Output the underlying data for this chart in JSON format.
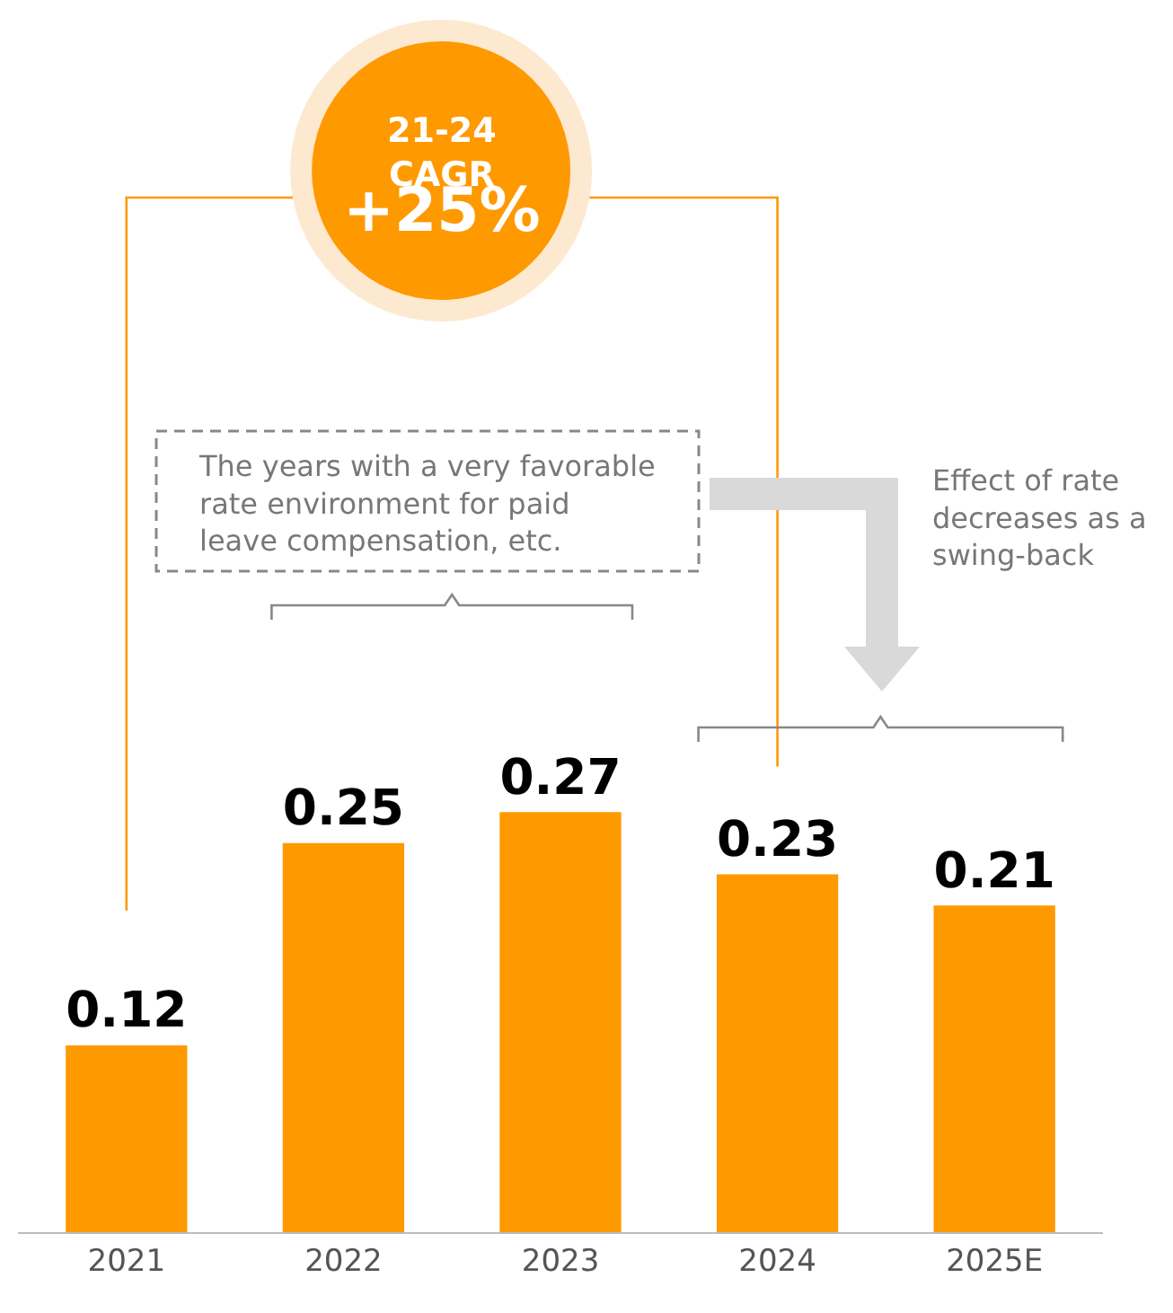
{
  "chart_data": {
    "type": "bar",
    "categories": [
      "2021",
      "2022",
      "2023",
      "2024",
      "2025E"
    ],
    "values": [
      0.12,
      0.25,
      0.27,
      0.23,
      0.21
    ],
    "color": "#ff9900",
    "data_labels": true,
    "grid": false,
    "annotations": [
      "21-24\nCAGR\n+25%",
      "The years with a very favorable\nrate environment for paid\nleave compensation, etc.",
      "Effect of rate\ndecreases as a\nswing-back"
    ]
  }
}
